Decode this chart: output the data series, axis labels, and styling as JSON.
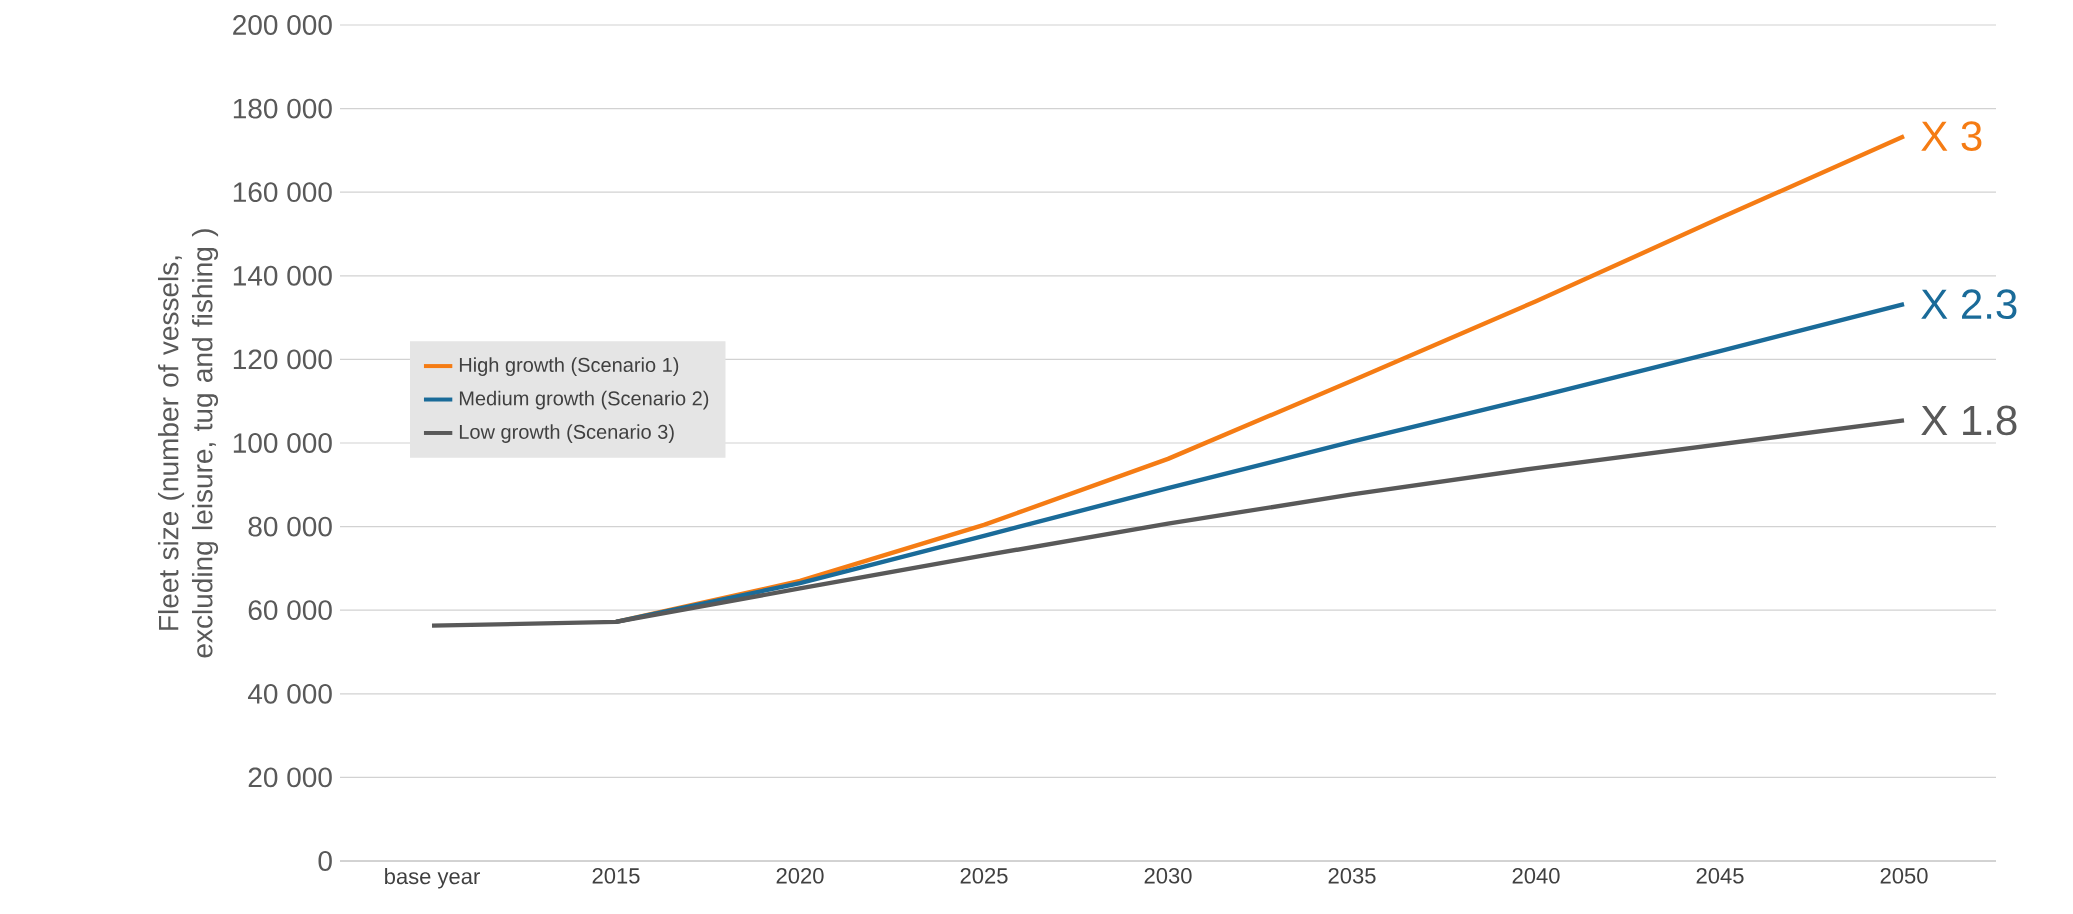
{
  "chart_data": {
    "type": "line",
    "ylabel": "Fleet size (number of vessels, excluding leisure, tug and fishing )",
    "categories": [
      "base year",
      "2015",
      "2020",
      "2025",
      "2030",
      "2035",
      "2040",
      "2045",
      "2050"
    ],
    "series": [
      {
        "name": "High growth (Scenario 1)",
        "color": "#f57c14",
        "values": [
          null,
          57200,
          67000,
          80400,
          96200,
          114900,
          133900,
          153800,
          173400
        ]
      },
      {
        "name": "Medium growth (Scenario 2)",
        "color": "#1a6b99",
        "values": [
          null,
          57200,
          66500,
          77800,
          89200,
          100300,
          111000,
          122000,
          133200
        ]
      },
      {
        "name": "Low growth (Scenario 3)",
        "color": "#595959",
        "values": [
          56300,
          57200,
          65200,
          73100,
          80700,
          87700,
          94000,
          99700,
          105400
        ]
      }
    ],
    "ylim": [
      0,
      200000
    ],
    "yticks": [
      {
        "value": 0,
        "label": "0"
      },
      {
        "value": 20000,
        "label": "20 000"
      },
      {
        "value": 40000,
        "label": "40 000"
      },
      {
        "value": 60000,
        "label": "60 000"
      },
      {
        "value": 80000,
        "label": "80 000"
      },
      {
        "value": 100000,
        "label": "100 000"
      },
      {
        "value": 120000,
        "label": "120 000"
      },
      {
        "value": 140000,
        "label": "140 000"
      },
      {
        "value": 160000,
        "label": "160 000"
      },
      {
        "value": 180000,
        "label": "180 000"
      },
      {
        "value": 200000,
        "label": "200 000"
      }
    ],
    "grid": "y",
    "legend": "left",
    "marker": "none",
    "line_style": "solid",
    "annotations": [
      {
        "text": "X 3",
        "x": "2050",
        "y": 173400
      },
      {
        "text": "X 2.3",
        "x": "2050",
        "y": 133200
      },
      {
        "text": "X 1.8",
        "x": "2050",
        "y": 105400
      }
    ]
  }
}
